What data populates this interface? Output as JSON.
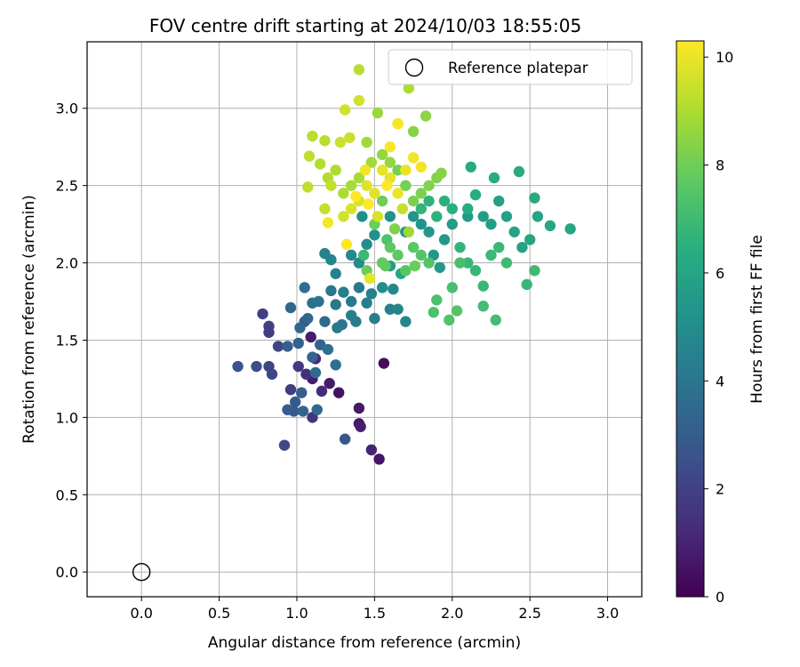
{
  "chart_data": {
    "type": "scatter",
    "title": "FOV centre drift starting at 2024/10/03 18:55:05",
    "xlabel": "Angular distance from reference (arcmin)",
    "ylabel": "Rotation from reference (arcmin)",
    "xlim": [
      -0.35,
      3.22
    ],
    "ylim": [
      -0.16,
      3.43
    ],
    "x_ticks": [
      0.0,
      0.5,
      1.0,
      1.5,
      2.0,
      2.5,
      3.0
    ],
    "y_ticks": [
      0.0,
      0.5,
      1.0,
      1.5,
      2.0,
      2.5,
      3.0
    ],
    "grid": true,
    "colorbar": {
      "label": "Hours from first FF file",
      "range": [
        0,
        10.3
      ],
      "ticks": [
        0,
        2,
        4,
        6,
        8,
        10
      ],
      "colormap": "viridis"
    },
    "reference_point": {
      "x": 0.0,
      "y": 0.0
    },
    "legend": {
      "position": "top-right",
      "entries": [
        "Reference platepar"
      ]
    },
    "points_columns": [
      "x",
      "y",
      "hours"
    ],
    "points": [
      [
        1.27,
        1.16,
        0.5
      ],
      [
        1.4,
        0.96,
        0.6
      ],
      [
        1.4,
        1.06,
        0.7
      ],
      [
        1.21,
        1.22,
        0.8
      ],
      [
        1.1,
        1.25,
        0.8
      ],
      [
        1.41,
        0.94,
        0.9
      ],
      [
        1.48,
        0.79,
        1.0
      ],
      [
        1.53,
        0.73,
        0.6
      ],
      [
        1.56,
        1.35,
        0.3
      ],
      [
        1.09,
        1.52,
        0.8
      ],
      [
        1.12,
        1.38,
        1.1
      ],
      [
        1.16,
        1.17,
        1.2
      ],
      [
        1.06,
        1.28,
        1.4
      ],
      [
        1.1,
        1.0,
        1.5
      ],
      [
        1.01,
        1.33,
        1.7
      ],
      [
        0.96,
        1.18,
        1.8
      ],
      [
        0.82,
        1.55,
        1.8
      ],
      [
        0.78,
        1.67,
        1.9
      ],
      [
        0.82,
        1.59,
        2.0
      ],
      [
        0.88,
        1.46,
        2.1
      ],
      [
        0.82,
        1.33,
        2.1
      ],
      [
        0.84,
        1.28,
        2.2
      ],
      [
        0.74,
        1.33,
        2.4
      ],
      [
        0.62,
        1.33,
        2.6
      ],
      [
        0.92,
        0.82,
        2.3
      ],
      [
        1.31,
        0.86,
        2.7
      ],
      [
        0.98,
        1.04,
        2.8
      ],
      [
        0.99,
        1.1,
        2.9
      ],
      [
        0.94,
        1.05,
        3.0
      ],
      [
        0.94,
        1.46,
        3.1
      ],
      [
        1.03,
        1.16,
        3.1
      ],
      [
        1.04,
        1.04,
        3.3
      ],
      [
        1.01,
        1.48,
        3.2
      ],
      [
        1.05,
        1.62,
        3.0
      ],
      [
        1.1,
        1.39,
        3.3
      ],
      [
        1.15,
        1.47,
        3.3
      ],
      [
        0.96,
        1.71,
        3.4
      ],
      [
        1.02,
        1.58,
        3.5
      ],
      [
        1.07,
        1.64,
        3.4
      ],
      [
        1.12,
        1.29,
        3.6
      ],
      [
        1.13,
        1.05,
        3.5
      ],
      [
        1.18,
        1.62,
        3.6
      ],
      [
        1.2,
        1.44,
        3.7
      ],
      [
        1.25,
        1.34,
        3.8
      ],
      [
        1.05,
        1.84,
        3.7
      ],
      [
        1.1,
        1.74,
        3.8
      ],
      [
        1.14,
        1.75,
        3.9
      ],
      [
        1.22,
        1.82,
        4.0
      ],
      [
        1.29,
        1.6,
        4.0
      ],
      [
        1.35,
        1.75,
        4.2
      ],
      [
        1.4,
        1.84,
        4.1
      ],
      [
        1.38,
        1.62,
        4.3
      ],
      [
        1.3,
        1.81,
        4.3
      ],
      [
        1.25,
        1.73,
        4.1
      ],
      [
        1.26,
        1.58,
        4.2
      ],
      [
        1.35,
        1.66,
        4.3
      ],
      [
        1.45,
        1.74,
        4.4
      ],
      [
        1.5,
        1.64,
        4.4
      ],
      [
        1.48,
        1.8,
        4.5
      ],
      [
        1.6,
        1.7,
        4.4
      ],
      [
        1.65,
        1.7,
        4.6
      ],
      [
        1.7,
        1.62,
        4.7
      ],
      [
        1.62,
        1.83,
        4.8
      ],
      [
        1.18,
        2.06,
        4.5
      ],
      [
        1.25,
        1.93,
        4.5
      ],
      [
        1.22,
        2.02,
        4.6
      ],
      [
        1.35,
        2.05,
        4.8
      ],
      [
        1.4,
        2.0,
        4.9
      ],
      [
        1.55,
        1.84,
        5.0
      ],
      [
        1.55,
        2.0,
        5.0
      ],
      [
        1.45,
        2.12,
        5.0
      ],
      [
        1.5,
        2.18,
        5.1
      ],
      [
        1.42,
        2.3,
        5.1
      ],
      [
        1.6,
        2.3,
        5.2
      ],
      [
        1.7,
        2.2,
        5.2
      ],
      [
        1.75,
        2.3,
        5.3
      ],
      [
        1.8,
        2.25,
        5.3
      ],
      [
        1.85,
        2.2,
        5.4
      ],
      [
        1.88,
        2.05,
        5.4
      ],
      [
        1.92,
        1.97,
        5.5
      ],
      [
        1.95,
        2.15,
        5.5
      ],
      [
        2.0,
        2.25,
        5.6
      ],
      [
        2.1,
        2.3,
        5.6
      ],
      [
        2.2,
        2.3,
        5.7
      ],
      [
        2.25,
        2.25,
        5.7
      ],
      [
        2.3,
        2.4,
        5.8
      ],
      [
        2.35,
        2.3,
        5.8
      ],
      [
        2.4,
        2.2,
        5.9
      ],
      [
        2.45,
        2.1,
        5.9
      ],
      [
        2.5,
        2.15,
        6.0
      ],
      [
        2.55,
        2.3,
        6.0
      ],
      [
        2.63,
        2.24,
        6.1
      ],
      [
        2.76,
        2.22,
        6.1
      ],
      [
        2.53,
        2.42,
        6.2
      ],
      [
        2.43,
        2.59,
        6.2
      ],
      [
        2.27,
        2.55,
        6.3
      ],
      [
        2.12,
        2.62,
        6.3
      ],
      [
        2.15,
        2.44,
        6.4
      ],
      [
        2.1,
        2.35,
        6.4
      ],
      [
        2.0,
        2.35,
        6.5
      ],
      [
        1.95,
        2.4,
        6.5
      ],
      [
        1.9,
        2.3,
        6.6
      ],
      [
        1.85,
        2.4,
        6.6
      ],
      [
        1.8,
        2.35,
        6.7
      ],
      [
        2.05,
        2.1,
        6.7
      ],
      [
        2.1,
        2.0,
        6.8
      ],
      [
        2.15,
        1.95,
        6.8
      ],
      [
        2.2,
        1.85,
        6.9
      ],
      [
        2.25,
        2.05,
        6.9
      ],
      [
        2.3,
        2.1,
        6.9
      ],
      [
        2.35,
        2.0,
        7.0
      ],
      [
        2.48,
        1.86,
        6.8
      ],
      [
        2.53,
        1.95,
        7.0
      ],
      [
        2.28,
        1.63,
        7.1
      ],
      [
        2.2,
        1.72,
        7.1
      ],
      [
        2.05,
        2.0,
        7.2
      ],
      [
        2.0,
        1.84,
        7.2
      ],
      [
        1.9,
        1.76,
        7.3
      ],
      [
        1.88,
        1.68,
        7.3
      ],
      [
        1.98,
        1.63,
        7.4
      ],
      [
        2.03,
        1.69,
        7.5
      ],
      [
        1.8,
        2.05,
        7.5
      ],
      [
        1.85,
        2.0,
        7.5
      ],
      [
        1.75,
        2.1,
        7.6
      ],
      [
        1.7,
        1.95,
        7.6
      ],
      [
        1.65,
        2.05,
        7.7
      ],
      [
        1.6,
        2.1,
        7.7
      ],
      [
        1.55,
        2.0,
        7.8
      ],
      [
        1.57,
        1.98,
        7.8
      ],
      [
        1.45,
        1.95,
        7.9
      ],
      [
        1.5,
        2.25,
        7.9
      ],
      [
        1.55,
        2.4,
        8.0
      ],
      [
        1.6,
        2.55,
        8.0
      ],
      [
        1.65,
        2.6,
        8.1
      ],
      [
        1.7,
        2.5,
        8.1
      ],
      [
        1.75,
        2.4,
        8.2
      ],
      [
        1.8,
        2.45,
        8.2
      ],
      [
        1.85,
        2.5,
        8.3
      ],
      [
        1.9,
        2.55,
        8.3
      ],
      [
        1.93,
        2.58,
        8.4
      ],
      [
        1.75,
        2.85,
        8.4
      ],
      [
        1.83,
        2.95,
        8.5
      ],
      [
        1.65,
        2.9,
        8.5
      ],
      [
        1.6,
        2.65,
        8.6
      ],
      [
        1.55,
        2.7,
        8.6
      ],
      [
        1.52,
        2.97,
        8.7
      ],
      [
        1.45,
        2.78,
        8.8
      ],
      [
        1.48,
        2.65,
        8.8
      ],
      [
        1.4,
        2.55,
        8.9
      ],
      [
        1.35,
        2.5,
        8.9
      ],
      [
        1.3,
        2.45,
        9.0
      ],
      [
        1.25,
        2.6,
        9.0
      ],
      [
        1.2,
        2.55,
        9.1
      ],
      [
        1.15,
        2.64,
        9.1
      ],
      [
        1.18,
        2.79,
        9.2
      ],
      [
        1.1,
        2.82,
        9.2
      ],
      [
        1.08,
        2.69,
        9.3
      ],
      [
        1.07,
        2.49,
        9.3
      ],
      [
        1.18,
        2.35,
        9.4
      ],
      [
        1.22,
        2.5,
        9.4
      ],
      [
        1.28,
        2.78,
        9.5
      ],
      [
        1.34,
        2.81,
        9.5
      ],
      [
        1.31,
        2.99,
        9.6
      ],
      [
        1.4,
        3.05,
        9.6
      ],
      [
        1.4,
        3.25,
        9.2
      ],
      [
        1.72,
        3.13,
        9.0
      ],
      [
        1.3,
        2.3,
        9.6
      ],
      [
        1.35,
        2.35,
        9.7
      ],
      [
        1.4,
        2.4,
        9.7
      ],
      [
        1.45,
        2.5,
        9.8
      ],
      [
        1.5,
        2.45,
        9.8
      ],
      [
        1.55,
        2.6,
        9.9
      ],
      [
        1.6,
        2.55,
        9.9
      ],
      [
        1.65,
        2.45,
        10.0
      ],
      [
        1.7,
        2.6,
        10.0
      ],
      [
        1.75,
        2.68,
        10.1
      ],
      [
        1.8,
        2.62,
        10.1
      ],
      [
        1.65,
        2.9,
        10.2
      ],
      [
        1.6,
        2.75,
        10.2
      ],
      [
        1.58,
        2.5,
        10.3
      ],
      [
        1.46,
        2.38,
        10.3
      ],
      [
        1.38,
        2.43,
        10.3
      ],
      [
        1.2,
        2.26,
        10.2
      ],
      [
        1.32,
        2.12,
        10.3
      ],
      [
        1.44,
        2.6,
        10.1
      ],
      [
        1.52,
        2.3,
        9.7
      ],
      [
        1.68,
        2.35,
        9.4
      ],
      [
        1.72,
        2.2,
        8.8
      ],
      [
        1.63,
        2.22,
        8.3
      ],
      [
        1.58,
        2.15,
        7.4
      ],
      [
        1.47,
        1.9,
        9.9
      ],
      [
        1.43,
        2.05,
        6.9
      ],
      [
        1.6,
        1.98,
        5.6
      ],
      [
        1.67,
        1.93,
        6.1
      ],
      [
        1.76,
        1.98,
        7.9
      ]
    ]
  }
}
